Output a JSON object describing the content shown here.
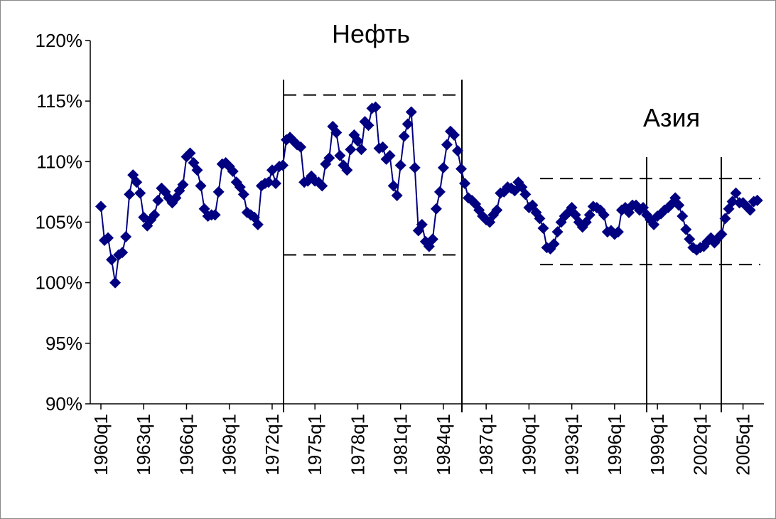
{
  "chart_data": {
    "type": "line",
    "categories": [
      "1960q1",
      null,
      null,
      null,
      null,
      null,
      null,
      null,
      null,
      null,
      null,
      null,
      "1963q1",
      null,
      null,
      null,
      null,
      null,
      null,
      null,
      null,
      null,
      null,
      null,
      "1966q1",
      null,
      null,
      null,
      null,
      null,
      null,
      null,
      null,
      null,
      null,
      null,
      "1969q1",
      null,
      null,
      null,
      null,
      null,
      null,
      null,
      null,
      null,
      null,
      null,
      "1972q1",
      null,
      null,
      null,
      null,
      null,
      null,
      null,
      null,
      null,
      null,
      null,
      "1975q1",
      null,
      null,
      null,
      null,
      null,
      null,
      null,
      null,
      null,
      null,
      null,
      "1978q1",
      null,
      null,
      null,
      null,
      null,
      null,
      null,
      null,
      null,
      null,
      null,
      "1981q1",
      null,
      null,
      null,
      null,
      null,
      null,
      null,
      null,
      null,
      null,
      null,
      "1984q1",
      null,
      null,
      null,
      null,
      null,
      null,
      null,
      null,
      null,
      null,
      null,
      "1987q1",
      null,
      null,
      null,
      null,
      null,
      null,
      null,
      null,
      null,
      null,
      null,
      "1990q1",
      null,
      null,
      null,
      null,
      null,
      null,
      null,
      null,
      null,
      null,
      null,
      "1993q1",
      null,
      null,
      null,
      null,
      null,
      null,
      null,
      null,
      null,
      null,
      null,
      "1996q1",
      null,
      null,
      null,
      null,
      null,
      null,
      null,
      null,
      null,
      null,
      null,
      "1999q1",
      null,
      null,
      null,
      null,
      null,
      null,
      null,
      null,
      null,
      null,
      null,
      "2002q1",
      null,
      null,
      null,
      null,
      null,
      null,
      null,
      null,
      null,
      null,
      null,
      "2005q1",
      null,
      null,
      null,
      null
    ],
    "values": [
      106.3,
      103.5,
      103.7,
      101.9,
      100.0,
      102.3,
      102.5,
      103.8,
      107.3,
      108.9,
      108.3,
      107.4,
      105.4,
      104.7,
      105.2,
      105.6,
      106.8,
      107.8,
      107.5,
      107.0,
      106.6,
      107.0,
      107.6,
      108.1,
      110.4,
      110.7,
      109.9,
      109.3,
      108.0,
      106.1,
      105.5,
      105.6,
      105.6,
      107.5,
      109.8,
      109.9,
      109.6,
      109.2,
      108.3,
      107.9,
      107.3,
      105.8,
      105.6,
      105.4,
      104.8,
      108.0,
      108.2,
      108.3,
      109.3,
      108.2,
      109.6,
      109.7,
      111.8,
      112.0,
      111.7,
      111.4,
      111.2,
      108.3,
      108.4,
      108.8,
      108.4,
      108.3,
      108.0,
      109.8,
      110.3,
      112.9,
      112.4,
      110.5,
      109.7,
      109.3,
      111.0,
      112.2,
      111.7,
      111.0,
      113.3,
      113.0,
      114.4,
      114.5,
      111.1,
      111.2,
      110.2,
      110.5,
      108.0,
      107.2,
      109.7,
      112.1,
      113.1,
      114.1,
      109.5,
      104.3,
      104.8,
      103.4,
      103.0,
      103.6,
      106.1,
      107.5,
      109.5,
      111.4,
      112.5,
      112.2,
      110.9,
      109.4,
      108.2,
      107.0,
      106.8,
      106.5,
      106.0,
      105.5,
      105.2,
      105.0,
      105.6,
      106.0,
      107.4,
      107.5,
      107.9,
      107.8,
      107.6,
      108.3,
      107.9,
      107.3,
      106.2,
      106.4,
      105.8,
      105.3,
      104.5,
      102.9,
      102.8,
      103.2,
      104.2,
      105.0,
      105.5,
      105.8,
      106.2,
      105.6,
      105.0,
      104.6,
      105.0,
      105.6,
      106.3,
      106.2,
      106.0,
      105.6,
      104.2,
      104.3,
      104.0,
      104.2,
      106.0,
      106.2,
      105.8,
      106.4,
      106.4,
      106.0,
      106.2,
      105.6,
      105.2,
      104.8,
      105.5,
      105.7,
      106.0,
      106.2,
      106.5,
      107.0,
      106.4,
      105.5,
      104.4,
      103.6,
      102.9,
      102.7,
      102.9,
      103.0,
      103.4,
      103.7,
      103.3,
      103.7,
      104.0,
      105.3,
      106.1,
      106.7,
      107.4,
      106.6,
      106.6,
      106.3,
      106.0,
      106.7,
      106.8
    ],
    "color": "#000080",
    "ylim": [
      90,
      120
    ],
    "yticks": [
      {
        "value": 90,
        "label": "90%"
      },
      {
        "value": 95,
        "label": "95%"
      },
      {
        "value": 100,
        "label": "100%"
      },
      {
        "value": 105,
        "label": "105%"
      },
      {
        "value": 110,
        "label": "110%"
      },
      {
        "value": 115,
        "label": "115%"
      },
      {
        "value": 120,
        "label": "120%"
      }
    ],
    "grid": false,
    "annotations": [
      {
        "text": "Нефть",
        "levels": [
          115.5,
          102.3
        ]
      },
      {
        "text": "Азия",
        "levels": [
          108.6,
          101.5
        ]
      }
    ]
  }
}
